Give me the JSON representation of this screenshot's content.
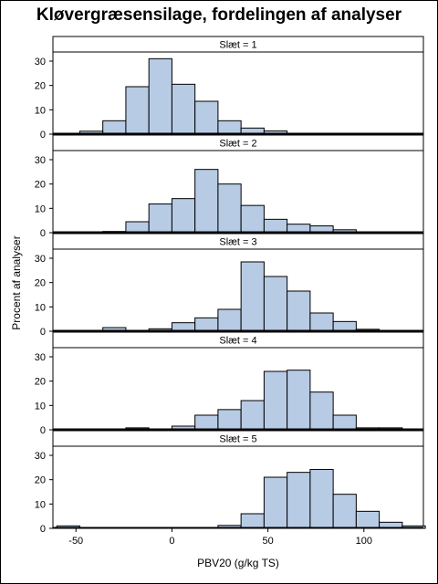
{
  "chart_data": {
    "type": "bar",
    "title": "Kløvergræsensilage, fordelingen af analyser",
    "xlabel": "PBV20 (g/kg TS)",
    "ylabel": "Procent af analyser",
    "xlim": [
      -62,
      131
    ],
    "ylim": [
      0,
      33
    ],
    "xticks": [
      -50,
      0,
      50,
      100
    ],
    "yticks": [
      0,
      10,
      20,
      30
    ],
    "bin_width": 12,
    "bar_color": "#b7cbe4",
    "bar_edge_color": "#000000",
    "panels": [
      {
        "label": "Slæt = 1",
        "bins": [
          {
            "x": -42,
            "value": 1.2
          },
          {
            "x": -30,
            "value": 5.5
          },
          {
            "x": -18,
            "value": 19.5
          },
          {
            "x": -6,
            "value": 31
          },
          {
            "x": 6,
            "value": 20.5
          },
          {
            "x": 18,
            "value": 13.5
          },
          {
            "x": 30,
            "value": 5.5
          },
          {
            "x": 42,
            "value": 2.5
          },
          {
            "x": 54,
            "value": 1.3
          }
        ]
      },
      {
        "label": "Slæt = 2",
        "bins": [
          {
            "x": -30,
            "value": 0.5
          },
          {
            "x": -18,
            "value": 4.5
          },
          {
            "x": -6,
            "value": 11.8
          },
          {
            "x": 6,
            "value": 14
          },
          {
            "x": 18,
            "value": 26
          },
          {
            "x": 30,
            "value": 20
          },
          {
            "x": 42,
            "value": 11.2
          },
          {
            "x": 54,
            "value": 5.5
          },
          {
            "x": 66,
            "value": 3.5
          },
          {
            "x": 78,
            "value": 2.8
          },
          {
            "x": 90,
            "value": 1.2
          }
        ]
      },
      {
        "label": "Slæt = 3",
        "bins": [
          {
            "x": -30,
            "value": 1.5
          },
          {
            "x": -6,
            "value": 1
          },
          {
            "x": 6,
            "value": 3.5
          },
          {
            "x": 18,
            "value": 5.5
          },
          {
            "x": 30,
            "value": 9
          },
          {
            "x": 42,
            "value": 28.5
          },
          {
            "x": 54,
            "value": 22.5
          },
          {
            "x": 66,
            "value": 16.5
          },
          {
            "x": 78,
            "value": 7.5
          },
          {
            "x": 90,
            "value": 4
          },
          {
            "x": 102,
            "value": 0.8
          }
        ]
      },
      {
        "label": "Slæt = 4",
        "bins": [
          {
            "x": -18,
            "value": 0.8
          },
          {
            "x": 6,
            "value": 1.5
          },
          {
            "x": 18,
            "value": 6
          },
          {
            "x": 30,
            "value": 8.3
          },
          {
            "x": 42,
            "value": 12
          },
          {
            "x": 54,
            "value": 24
          },
          {
            "x": 66,
            "value": 24.5
          },
          {
            "x": 78,
            "value": 15.5
          },
          {
            "x": 90,
            "value": 6
          },
          {
            "x": 102,
            "value": 0.8
          },
          {
            "x": 114,
            "value": 0.8
          }
        ]
      },
      {
        "label": "Slæt = 5",
        "bins": [
          {
            "x": -54,
            "value": 1
          },
          {
            "x": 30,
            "value": 1.2
          },
          {
            "x": 42,
            "value": 6
          },
          {
            "x": 54,
            "value": 21
          },
          {
            "x": 66,
            "value": 23
          },
          {
            "x": 78,
            "value": 24.2
          },
          {
            "x": 90,
            "value": 14
          },
          {
            "x": 102,
            "value": 7
          },
          {
            "x": 114,
            "value": 2.5
          },
          {
            "x": 126,
            "value": 1
          }
        ]
      }
    ]
  }
}
